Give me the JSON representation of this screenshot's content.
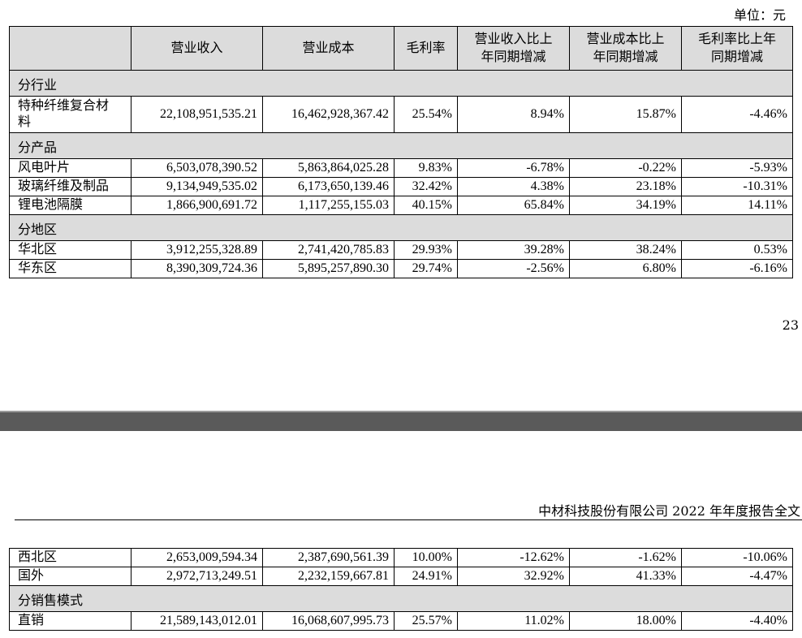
{
  "unit_label": "单位：元",
  "headers": [
    "",
    "营业收入",
    "营业成本",
    "毛利率",
    "营业收入比上年同期增减",
    "营业成本比上年同期增减",
    "毛利率比上年同期增减"
  ],
  "headers_split": {
    "h4": [
      "营业收入比上",
      "年同期增减"
    ],
    "h5": [
      "营业成本比上",
      "年同期增减"
    ],
    "h6": [
      "毛利率比上年",
      "同期增减"
    ]
  },
  "sections_top": [
    {
      "title": "分行业",
      "rows": [
        {
          "name": "特种纤维复合材料",
          "name_lines": [
            "特种纤维复合材",
            "料"
          ],
          "revenue": "22,108,951,535.21",
          "cost": "16,462,928,367.42",
          "margin": "25.54%",
          "rev_chg": "8.94%",
          "cost_chg": "15.87%",
          "margin_chg": "-4.46%"
        }
      ]
    },
    {
      "title": "分产品",
      "rows": [
        {
          "name": "风电叶片",
          "revenue": "6,503,078,390.52",
          "cost": "5,863,864,025.28",
          "margin": "9.83%",
          "rev_chg": "-6.78%",
          "cost_chg": "-0.22%",
          "margin_chg": "-5.93%"
        },
        {
          "name": "玻璃纤维及制品",
          "revenue": "9,134,949,535.02",
          "cost": "6,173,650,139.46",
          "margin": "32.42%",
          "rev_chg": "4.38%",
          "cost_chg": "23.18%",
          "margin_chg": "-10.31%"
        },
        {
          "name": "锂电池隔膜",
          "revenue": "1,866,900,691.72",
          "cost": "1,117,255,155.03",
          "margin": "40.15%",
          "rev_chg": "65.84%",
          "cost_chg": "34.19%",
          "margin_chg": "14.11%"
        }
      ]
    },
    {
      "title": "分地区",
      "rows": [
        {
          "name": "华北区",
          "revenue": "3,912,255,328.89",
          "cost": "2,741,420,785.83",
          "margin": "29.93%",
          "rev_chg": "39.28%",
          "cost_chg": "38.24%",
          "margin_chg": "0.53%"
        },
        {
          "name": "华东区",
          "revenue": "8,390,309,724.36",
          "cost": "5,895,257,890.30",
          "margin": "29.74%",
          "rev_chg": "-2.56%",
          "cost_chg": "6.80%",
          "margin_chg": "-6.16%"
        }
      ]
    }
  ],
  "page_number": "23",
  "running_header": "中材科技股份有限公司 2022 年年度报告全文",
  "rows_bottom": [
    {
      "name": "西北区",
      "revenue": "2,653,009,594.34",
      "cost": "2,387,690,561.39",
      "margin": "10.00%",
      "rev_chg": "-12.62%",
      "cost_chg": "-1.62%",
      "margin_chg": "-10.06%"
    },
    {
      "name": "国外",
      "revenue": "2,972,713,249.51",
      "cost": "2,232,159,667.81",
      "margin": "24.91%",
      "rev_chg": "32.92%",
      "cost_chg": "41.33%",
      "margin_chg": "-4.47%"
    }
  ],
  "section_bottom": {
    "title": "分销售模式",
    "rows": [
      {
        "name": "直销",
        "revenue": "21,589,143,012.01",
        "cost": "16,068,607,995.73",
        "margin": "25.57%",
        "rev_chg": "11.02%",
        "cost_chg": "18.00%",
        "margin_chg": "-4.40%"
      }
    ]
  }
}
